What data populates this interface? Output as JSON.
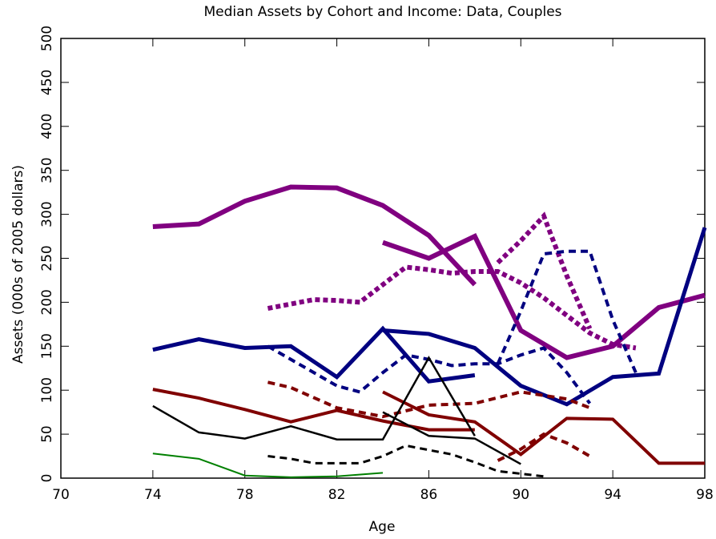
{
  "chart_data": {
    "type": "line",
    "title": "Median Assets by Cohort and Income:  Data, Couples",
    "x_label": "Age",
    "y_label": "Assets (000s of 2005 dollars)",
    "xlim": [
      70,
      98
    ],
    "xticks": [
      70,
      74,
      78,
      82,
      86,
      90,
      94,
      98
    ],
    "ylim": [
      0,
      500
    ],
    "yticks": [
      0,
      50,
      100,
      150,
      200,
      250,
      300,
      350,
      400,
      450,
      500
    ],
    "grid": false,
    "series": [
      {
        "color": "#800080",
        "width": 6,
        "dash": "solid",
        "x": [
          74,
          76,
          78,
          80,
          82,
          84,
          86,
          88
        ],
        "values": [
          286,
          289,
          315,
          331,
          330,
          310,
          276,
          220
        ]
      },
      {
        "color": "#800080",
        "width": 6,
        "dash": "solid",
        "x": [
          84,
          86,
          88,
          90,
          92,
          94,
          96,
          98
        ],
        "values": [
          268,
          250,
          275,
          168,
          137,
          150,
          194,
          208
        ]
      },
      {
        "color": "#800080",
        "width": 6,
        "dash": "dotted",
        "x": [
          79,
          80,
          81,
          82,
          83,
          84,
          85,
          86,
          87,
          88,
          89,
          90,
          91,
          92,
          93,
          94,
          95
        ],
        "values": [
          193,
          198,
          203,
          202,
          200,
          220,
          240,
          237,
          233,
          235,
          235,
          222,
          205,
          185,
          165,
          152,
          148
        ]
      },
      {
        "color": "#800080",
        "width": 6,
        "dash": "dotted",
        "x": [
          89,
          90,
          91,
          92,
          93
        ],
        "values": [
          245,
          270,
          298,
          230,
          170
        ]
      },
      {
        "color": "#000080",
        "width": 5,
        "dash": "solid",
        "x": [
          74,
          76,
          78,
          80,
          82,
          84,
          86,
          88
        ],
        "values": [
          146,
          158,
          148,
          150,
          115,
          170,
          110,
          117
        ]
      },
      {
        "color": "#000080",
        "width": 5,
        "dash": "solid",
        "x": [
          84,
          86,
          88,
          90,
          92,
          94,
          96,
          98
        ],
        "values": [
          168,
          164,
          148,
          105,
          84,
          115,
          119,
          285
        ]
      },
      {
        "color": "#000080",
        "width": 4,
        "dash": "dashed",
        "x": [
          79,
          80,
          82,
          83,
          84,
          85,
          86,
          87,
          88,
          89,
          90,
          91,
          92,
          93
        ],
        "values": [
          150,
          135,
          105,
          98,
          120,
          140,
          135,
          128,
          130,
          130,
          140,
          148,
          120,
          85
        ]
      },
      {
        "color": "#000080",
        "width": 4,
        "dash": "dashed",
        "x": [
          89,
          90,
          91,
          92,
          93,
          94,
          95
        ],
        "values": [
          130,
          190,
          255,
          258,
          258,
          180,
          120
        ]
      },
      {
        "color": "#800000",
        "width": 4,
        "dash": "solid",
        "x": [
          74,
          76,
          78,
          80,
          82,
          84,
          86,
          88
        ],
        "values": [
          101,
          91,
          78,
          64,
          77,
          65,
          55,
          55
        ]
      },
      {
        "color": "#800000",
        "width": 4,
        "dash": "solid",
        "x": [
          84,
          86,
          88,
          90,
          92,
          94,
          96,
          98
        ],
        "values": [
          98,
          72,
          64,
          27,
          68,
          67,
          17,
          17
        ]
      },
      {
        "color": "#800000",
        "width": 4,
        "dash": "dashed",
        "x": [
          79,
          80,
          82,
          84,
          86,
          88,
          90,
          92,
          93
        ],
        "values": [
          109,
          103,
          80,
          70,
          83,
          85,
          98,
          90,
          80
        ]
      },
      {
        "color": "#800000",
        "width": 4,
        "dash": "dashed",
        "x": [
          89,
          90,
          91,
          92,
          93
        ],
        "values": [
          20,
          33,
          50,
          40,
          25
        ]
      },
      {
        "color": "#000000",
        "width": 2.5,
        "dash": "solid",
        "x": [
          74,
          76,
          78,
          80,
          82,
          84,
          86,
          88
        ],
        "values": [
          82,
          52,
          45,
          59,
          44,
          44,
          137,
          48
        ]
      },
      {
        "color": "#000000",
        "width": 2.5,
        "dash": "solid",
        "x": [
          84,
          86,
          88,
          90
        ],
        "values": [
          75,
          48,
          45,
          16
        ]
      },
      {
        "color": "#000000",
        "width": 3,
        "dash": "dashed",
        "x": [
          79,
          80,
          81,
          82,
          83,
          84,
          85,
          86,
          87,
          88,
          89,
          90,
          91
        ],
        "values": [
          25,
          22,
          17,
          17,
          17,
          25,
          37,
          32,
          27,
          18,
          8,
          5,
          2
        ]
      },
      {
        "color": "#008000",
        "width": 2,
        "dash": "solid",
        "x": [
          74,
          76,
          78,
          80,
          82,
          84
        ],
        "values": [
          28,
          22,
          3,
          1,
          2,
          6
        ]
      }
    ]
  }
}
